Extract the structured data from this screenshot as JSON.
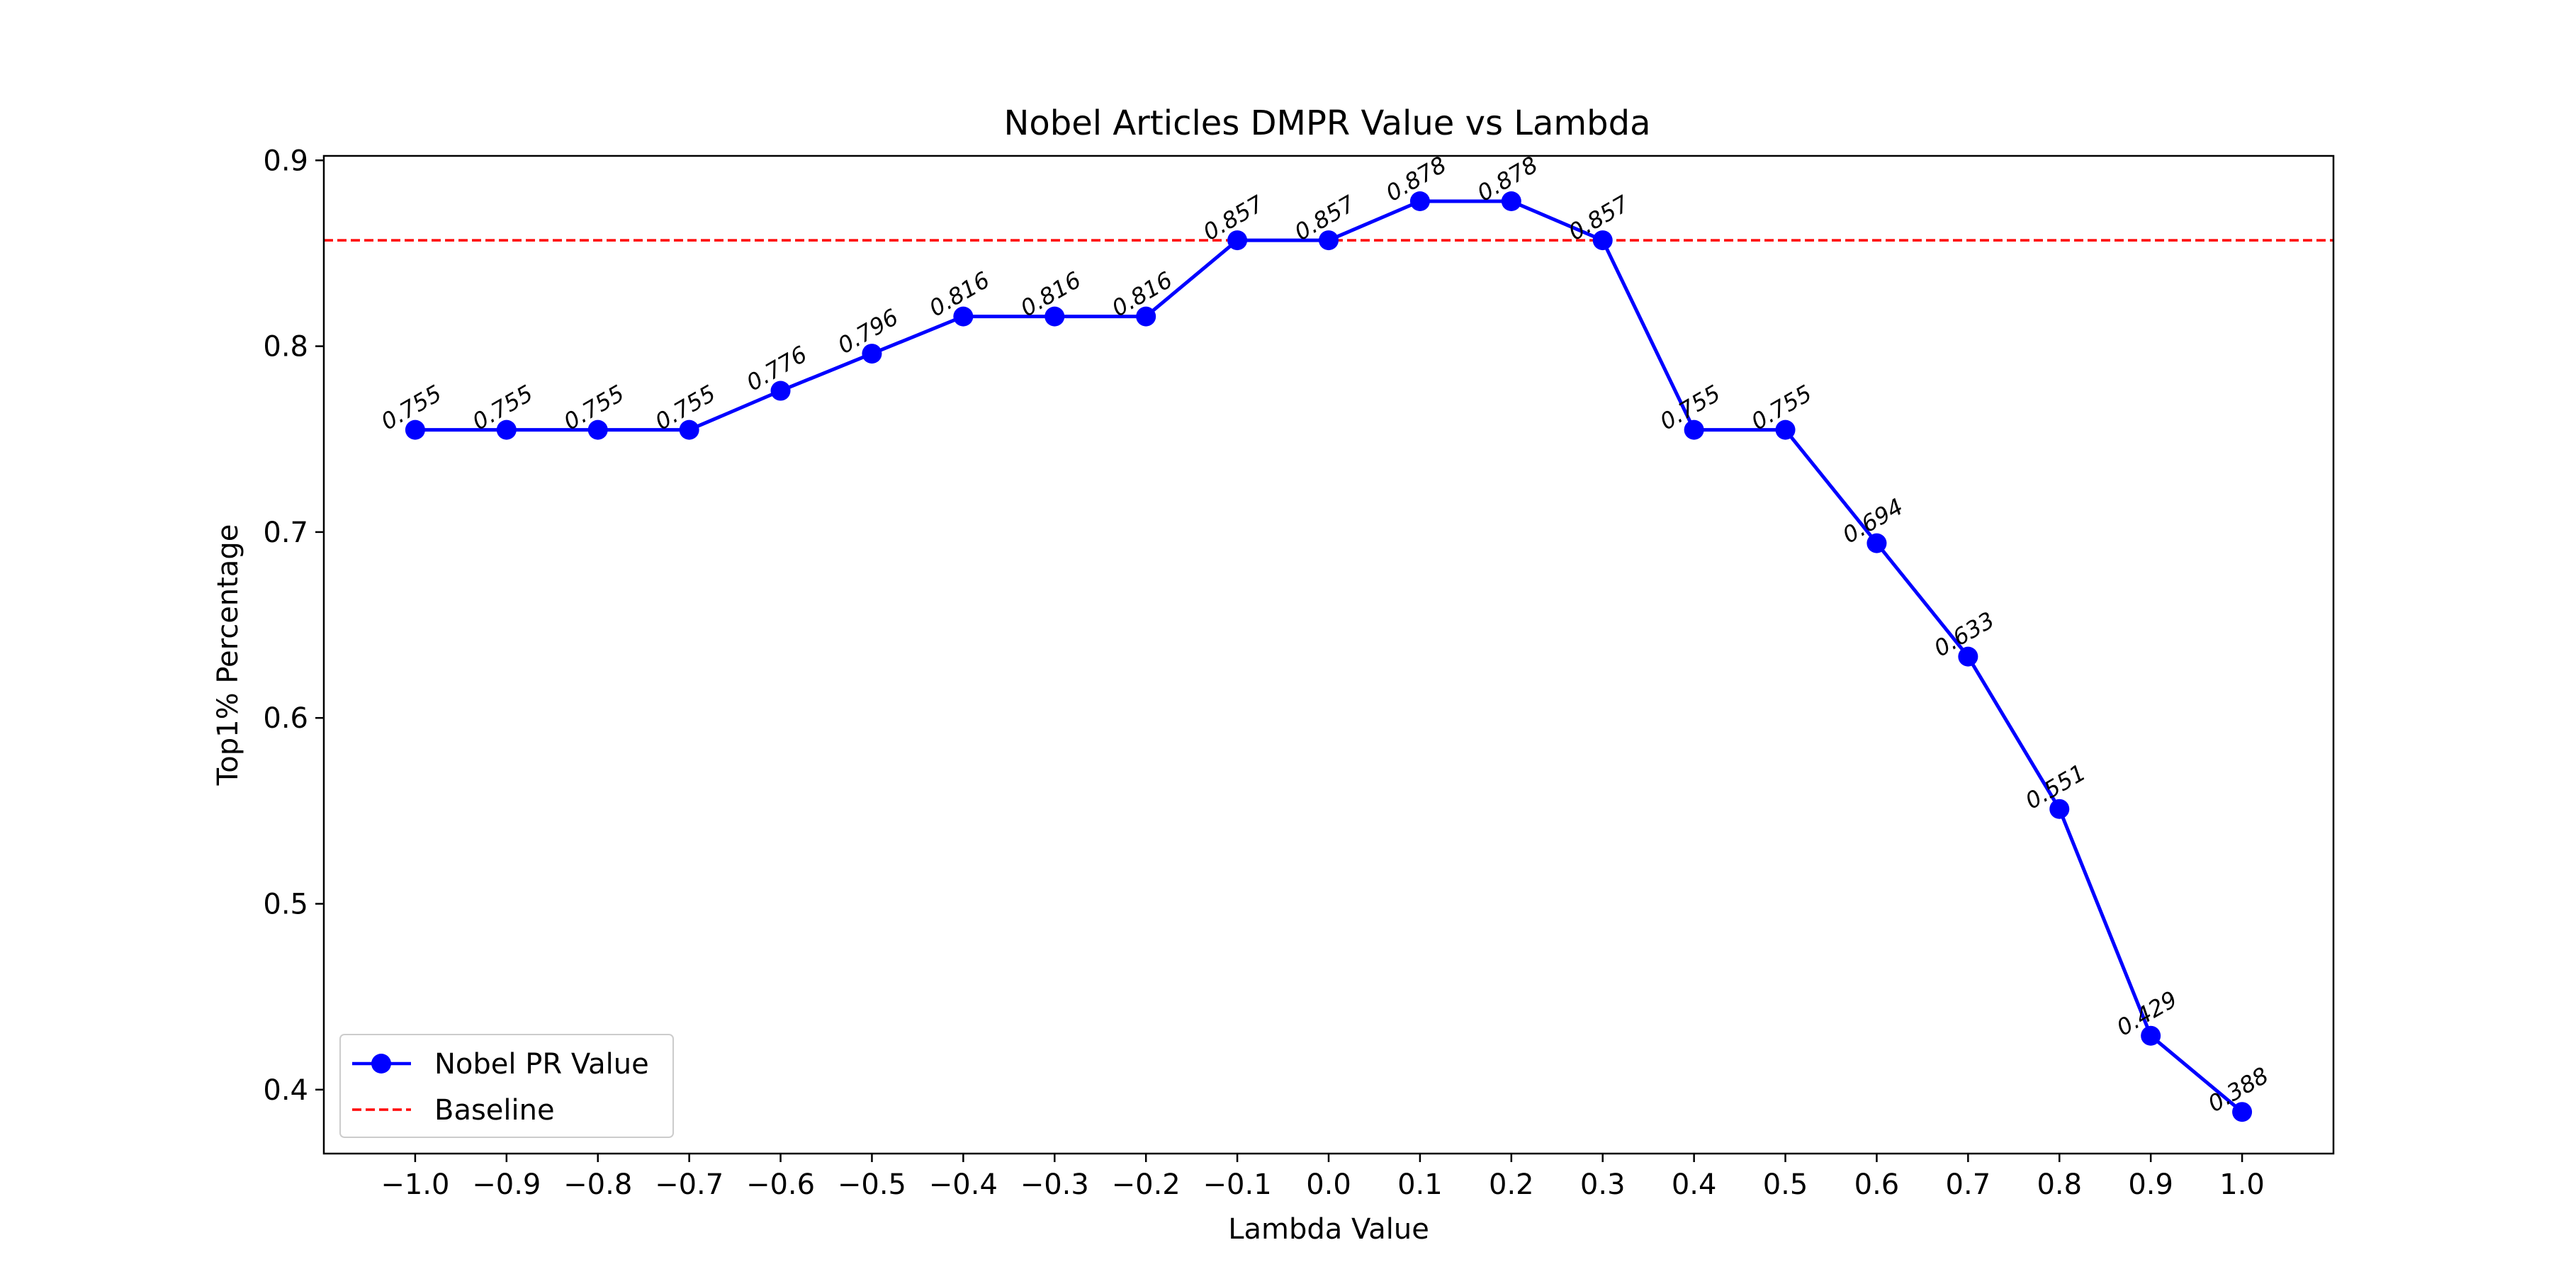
{
  "chart_data": {
    "type": "line",
    "title": "Nobel Articles DMPR Value vs Lambda",
    "xlabel": "Lambda Value",
    "ylabel": "Top1% Percentage",
    "x": [
      -1.0,
      -0.9,
      -0.8,
      -0.7,
      -0.6,
      -0.5,
      -0.4,
      -0.3,
      -0.2,
      -0.1,
      0.0,
      0.1,
      0.2,
      0.3,
      0.4,
      0.5,
      0.6,
      0.7,
      0.8,
      0.9,
      1.0
    ],
    "x_tick_labels": [
      "−1.0",
      "−0.9",
      "−0.8",
      "−0.7",
      "−0.6",
      "−0.5",
      "−0.4",
      "−0.3",
      "−0.2",
      "−0.1",
      "0.0",
      "0.1",
      "0.2",
      "0.3",
      "0.4",
      "0.5",
      "0.6",
      "0.7",
      "0.8",
      "0.9",
      "1.0"
    ],
    "xlim": [
      -1.1,
      1.1
    ],
    "ylim": [
      0.3656,
      0.9024
    ],
    "y_ticks": [
      0.4,
      0.5,
      0.6,
      0.7,
      0.8,
      0.9
    ],
    "y_tick_labels": [
      "0.4",
      "0.5",
      "0.6",
      "0.7",
      "0.8",
      "0.9"
    ],
    "series": [
      {
        "name": "Nobel PR Value",
        "style": "solid",
        "marker": "circle",
        "color": "#0000ff",
        "values": [
          0.755,
          0.755,
          0.755,
          0.755,
          0.776,
          0.796,
          0.816,
          0.816,
          0.816,
          0.857,
          0.857,
          0.878,
          0.878,
          0.857,
          0.755,
          0.755,
          0.694,
          0.633,
          0.551,
          0.429,
          0.388
        ],
        "data_labels": [
          "0.755",
          "0.755",
          "0.755",
          "0.755",
          "0.776",
          "0.796",
          "0.816",
          "0.816",
          "0.816",
          "0.857",
          "0.857",
          "0.878",
          "0.878",
          "0.857",
          "0.755",
          "0.755",
          "0.694",
          "0.633",
          "0.551",
          "0.429",
          "0.388"
        ]
      },
      {
        "name": "Baseline",
        "style": "dashed",
        "color": "#ff0000",
        "value": 0.857
      }
    ],
    "legend_position": "lower-left",
    "grid": false
  }
}
